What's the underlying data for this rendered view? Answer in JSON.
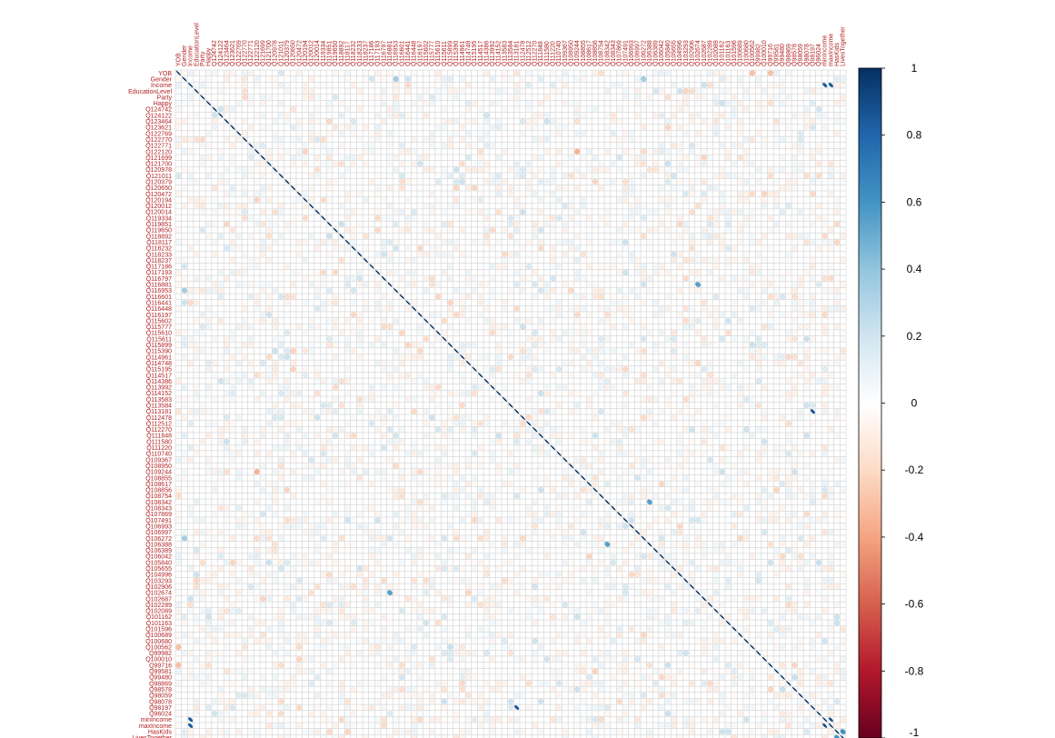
{
  "chart_data": {
    "type": "heatmap",
    "title": "",
    "xlabel": "",
    "ylabel": "",
    "variables": [
      "YOB",
      "Gender",
      "Income",
      "EducationLevel",
      "Party",
      "Happy",
      "Q124742",
      "Q124122",
      "Q123464",
      "Q123621",
      "Q122769",
      "Q122770",
      "Q122771",
      "Q122120",
      "Q121699",
      "Q121700",
      "Q120978",
      "Q121011",
      "Q120379",
      "Q120650",
      "Q120472",
      "Q120194",
      "Q120012",
      "Q120014",
      "Q119334",
      "Q119851",
      "Q119650",
      "Q118892",
      "Q118117",
      "Q118232",
      "Q118233",
      "Q118237",
      "Q117186",
      "Q117193",
      "Q116797",
      "Q116881",
      "Q116953",
      "Q116601",
      "Q116441",
      "Q116448",
      "Q116197",
      "Q115602",
      "Q115777",
      "Q115610",
      "Q115611",
      "Q115899",
      "Q115390",
      "Q114961",
      "Q114748",
      "Q115195",
      "Q114517",
      "Q114386",
      "Q113992",
      "Q114152",
      "Q113583",
      "Q113584",
      "Q113181",
      "Q112478",
      "Q112512",
      "Q112270",
      "Q111848",
      "Q111580",
      "Q111220",
      "Q110740",
      "Q109367",
      "Q108950",
      "Q109244",
      "Q108855",
      "Q108617",
      "Q108856",
      "Q108754",
      "Q108342",
      "Q108343",
      "Q107869",
      "Q107491",
      "Q106993",
      "Q106997",
      "Q106272",
      "Q106388",
      "Q106389",
      "Q106042",
      "Q105840",
      "Q105655",
      "Q104996",
      "Q103293",
      "Q102906",
      "Q102674",
      "Q102687",
      "Q102289",
      "Q102089",
      "Q101162",
      "Q101163",
      "Q101596",
      "Q100689",
      "Q100680",
      "Q100562",
      "Q99982",
      "Q100010",
      "Q99716",
      "Q99581",
      "Q99480",
      "Q98869",
      "Q98578",
      "Q98059",
      "Q98078",
      "Q98197",
      "Q96024",
      "minIncome",
      "maxIncome",
      "HasKids",
      "LivesTogether"
    ],
    "diagonal": 1,
    "notable_correlations": [
      {
        "row": "Q113181",
        "col": "Q98197",
        "value": 0.85
      },
      {
        "row": "Q98197",
        "col": "Q113181",
        "value": 0.85
      },
      {
        "row": "minIncome",
        "col": "maxIncome",
        "value": 0.9
      },
      {
        "row": "maxIncome",
        "col": "minIncome",
        "value": 0.9
      },
      {
        "row": "Income",
        "col": "minIncome",
        "value": 0.85
      },
      {
        "row": "Income",
        "col": "maxIncome",
        "value": 0.85
      },
      {
        "row": "HasKids",
        "col": "LivesTogether",
        "value": 0.6
      },
      {
        "row": "Q108342",
        "col": "Q106388",
        "value": 0.55
      },
      {
        "row": "Q102674",
        "col": "Q116881",
        "value": 0.55
      },
      {
        "row": "Q109244",
        "col": "Q122120",
        "value": -0.35
      },
      {
        "row": "YOB",
        "col": "Q99716",
        "value": -0.3
      },
      {
        "row": "YOB",
        "col": "Q100562",
        "value": -0.3
      },
      {
        "row": "Q116953",
        "col": "Gender",
        "value": 0.35
      },
      {
        "row": "Q106272",
        "col": "Gender",
        "value": 0.35
      }
    ],
    "colorbar": {
      "range": [
        -1,
        1
      ],
      "ticks": [
        "1",
        "0.8",
        "0.6",
        "0.4",
        "0.2",
        "0",
        "-0.2",
        "-0.4",
        "-0.6",
        "-0.8",
        "-1"
      ],
      "colors": [
        "#67001f",
        "#b2182b",
        "#d6604d",
        "#f4a582",
        "#fddbc7",
        "#ffffff",
        "#d1e5f0",
        "#92c5de",
        "#4393c3",
        "#2166ac",
        "#053061"
      ]
    },
    "legend": "right",
    "grid": true
  }
}
